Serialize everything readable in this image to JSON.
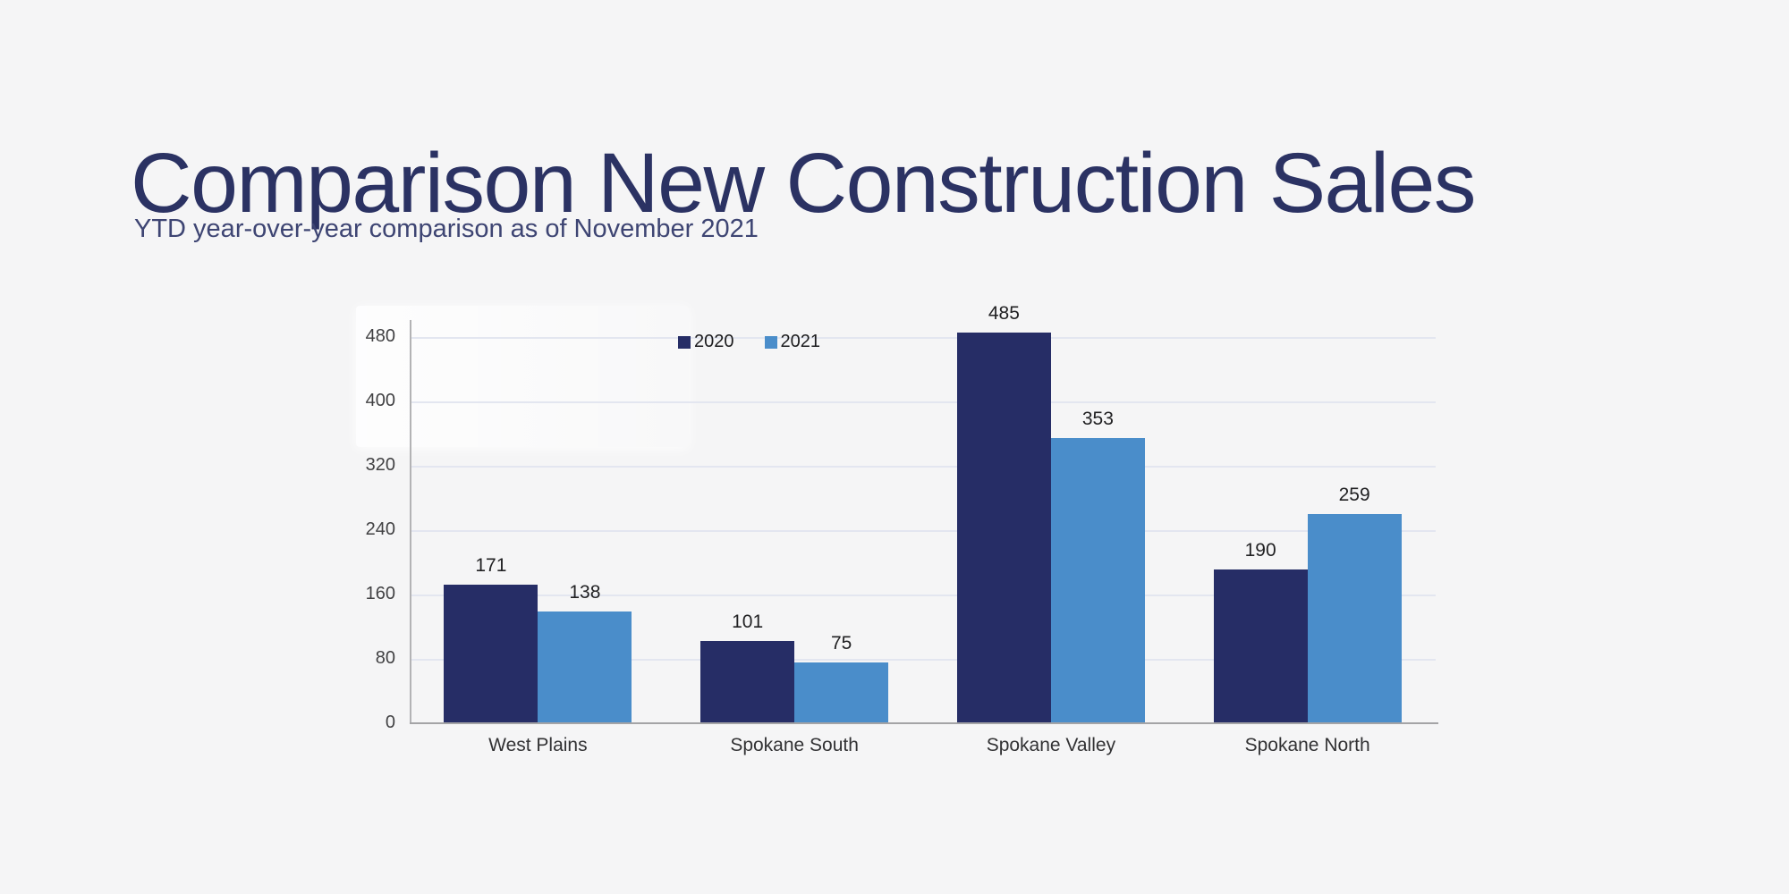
{
  "page": {
    "background_color": "#f5f5f6"
  },
  "header": {
    "title": "Comparison New Construction Sales",
    "subtitle": "YTD year-over-year comparison as of November 2021",
    "title_color": "#2b3263",
    "subtitle_color": "#3e4573"
  },
  "chart_data": {
    "type": "bar",
    "categories": [
      "West Plains",
      "Spokane South",
      "Spokane Valley",
      "Spokane North"
    ],
    "series": [
      {
        "name": "2020",
        "color": "#262d66",
        "values": [
          171,
          101,
          485,
          190
        ]
      },
      {
        "name": "2021",
        "color": "#4a8dca",
        "values": [
          138,
          75,
          353,
          259
        ]
      }
    ],
    "title": "",
    "xlabel": "",
    "ylabel": "",
    "ylim": [
      0,
      480
    ],
    "yticks": [
      0,
      80,
      160,
      240,
      320,
      400,
      480
    ],
    "grid": true,
    "legend_position": "top",
    "value_labels": true,
    "colors": {
      "gridline": "#e3e6f0",
      "axis": "#a4a4a6",
      "tick_label": "#414143",
      "category_label": "#323234",
      "value_label": "#212123",
      "legend_label": "#1c1c1e"
    }
  }
}
